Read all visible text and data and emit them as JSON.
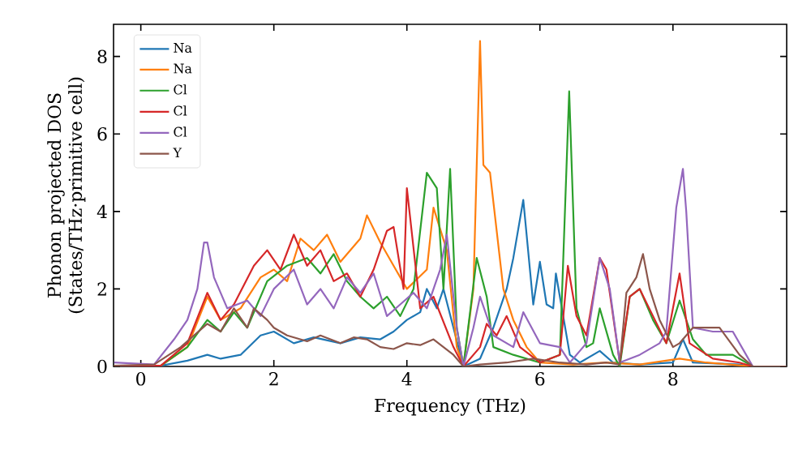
{
  "chart_data": {
    "type": "line",
    "xlabel": "Frequency (THz)",
    "ylabel": "Phonon projected DOS (States/THz·primitive cell)",
    "xlim": [
      -0.41,
      9.71
    ],
    "ylim": [
      0,
      8.83
    ],
    "xticks": [
      0,
      2,
      4,
      6,
      8
    ],
    "yticks": [
      0,
      2,
      4,
      6,
      8
    ],
    "legend": "top left",
    "grid": false,
    "line_style": "solid",
    "marker": "none",
    "series": [
      {
        "name": "Na",
        "color": "#1f77b4",
        "x": [
          -0.4,
          0.3,
          0.7,
          1.0,
          1.2,
          1.5,
          1.8,
          2.0,
          2.3,
          2.6,
          3.0,
          3.3,
          3.6,
          3.8,
          4.0,
          4.2,
          4.3,
          4.45,
          4.55,
          4.7,
          4.85,
          5.1,
          5.3,
          5.5,
          5.6,
          5.75,
          5.85,
          5.9,
          6.0,
          6.1,
          6.2,
          6.24,
          6.3,
          6.45,
          6.6,
          6.9,
          7.1,
          7.5,
          8.0,
          8.15,
          8.3,
          9.0,
          9.2,
          9.7
        ],
        "values": [
          0.02,
          0.02,
          0.15,
          0.3,
          0.2,
          0.3,
          0.8,
          0.9,
          0.6,
          0.75,
          0.6,
          0.75,
          0.7,
          0.9,
          1.2,
          1.4,
          2.0,
          1.5,
          2.0,
          1.0,
          0.0,
          0.2,
          1.0,
          2.0,
          2.8,
          4.3,
          2.5,
          1.6,
          2.7,
          1.6,
          1.5,
          2.4,
          1.8,
          0.3,
          0.1,
          0.4,
          0.1,
          0.05,
          0.1,
          0.7,
          0.1,
          0.05,
          0.0,
          0.0
        ]
      },
      {
        "name": "Na",
        "color": "#ff7f0e",
        "x": [
          -0.4,
          0.3,
          0.7,
          1.0,
          1.2,
          1.5,
          1.8,
          2.0,
          2.2,
          2.4,
          2.6,
          2.8,
          3.0,
          3.3,
          3.4,
          3.6,
          3.8,
          4.0,
          4.3,
          4.4,
          4.6,
          4.75,
          4.85,
          5.0,
          5.1,
          5.15,
          5.25,
          5.45,
          5.6,
          5.8,
          6.0,
          6.5,
          7.0,
          7.5,
          8.1,
          8.5,
          9.2,
          9.7
        ],
        "values": [
          0.02,
          0.02,
          0.5,
          1.8,
          1.2,
          1.5,
          2.3,
          2.5,
          2.2,
          3.3,
          3.0,
          3.4,
          2.7,
          3.3,
          3.9,
          3.2,
          2.6,
          2.0,
          2.5,
          4.1,
          3.0,
          0.5,
          0.0,
          2.0,
          8.4,
          5.2,
          5.0,
          2.0,
          1.2,
          0.5,
          0.1,
          0.05,
          0.1,
          0.05,
          0.2,
          0.1,
          0.0,
          0.0
        ]
      },
      {
        "name": "Cl",
        "color": "#2ca02c",
        "x": [
          -0.4,
          0.3,
          0.7,
          1.0,
          1.2,
          1.4,
          1.6,
          1.9,
          2.2,
          2.5,
          2.7,
          2.9,
          3.1,
          3.3,
          3.5,
          3.7,
          3.9,
          4.1,
          4.3,
          4.45,
          4.55,
          4.65,
          4.75,
          4.85,
          5.05,
          5.2,
          5.3,
          5.6,
          6.0,
          6.3,
          6.44,
          6.55,
          6.7,
          6.8,
          6.9,
          7.1,
          7.2,
          7.35,
          7.5,
          7.7,
          7.9,
          8.1,
          8.3,
          8.5,
          8.9,
          9.2,
          9.7
        ],
        "values": [
          0.02,
          0.02,
          0.5,
          1.2,
          0.9,
          1.4,
          1.0,
          2.2,
          2.6,
          2.8,
          2.4,
          2.9,
          2.2,
          1.8,
          1.5,
          1.8,
          1.3,
          2.0,
          5.0,
          4.6,
          2.0,
          5.1,
          1.0,
          0.0,
          2.8,
          1.8,
          0.5,
          0.3,
          0.1,
          0.3,
          7.1,
          1.5,
          0.5,
          0.6,
          1.5,
          0.3,
          0.0,
          1.8,
          2.0,
          1.2,
          0.6,
          1.7,
          0.7,
          0.3,
          0.3,
          0.0,
          0.0
        ]
      },
      {
        "name": "Cl",
        "color": "#d62728",
        "x": [
          -0.4,
          0.3,
          0.7,
          1.0,
          1.2,
          1.4,
          1.7,
          1.9,
          2.1,
          2.3,
          2.5,
          2.7,
          2.9,
          3.1,
          3.3,
          3.5,
          3.7,
          3.8,
          3.95,
          4.0,
          4.2,
          4.4,
          4.7,
          4.85,
          5.1,
          5.2,
          5.35,
          5.5,
          5.7,
          6.0,
          6.3,
          6.42,
          6.55,
          6.7,
          6.9,
          7.0,
          7.2,
          7.35,
          7.5,
          7.7,
          7.9,
          8.1,
          8.25,
          8.6,
          9.0,
          9.2,
          9.7
        ],
        "values": [
          0.02,
          0.02,
          0.6,
          1.9,
          1.2,
          1.6,
          2.6,
          3.0,
          2.5,
          3.4,
          2.6,
          3.0,
          2.2,
          2.4,
          1.8,
          2.5,
          3.5,
          3.6,
          2.0,
          4.6,
          1.5,
          1.8,
          0.5,
          0.0,
          0.5,
          1.1,
          0.8,
          1.3,
          0.5,
          0.1,
          0.3,
          2.6,
          1.3,
          0.8,
          2.8,
          2.5,
          0.1,
          1.8,
          2.0,
          1.3,
          0.6,
          2.4,
          0.6,
          0.2,
          0.1,
          0.0,
          0.0
        ]
      },
      {
        "name": "Cl",
        "color": "#9467bd",
        "x": [
          -0.4,
          0.2,
          0.5,
          0.7,
          0.85,
          0.95,
          1.0,
          1.1,
          1.3,
          1.6,
          1.8,
          2.0,
          2.3,
          2.5,
          2.7,
          2.9,
          3.1,
          3.3,
          3.5,
          3.7,
          3.9,
          4.1,
          4.3,
          4.5,
          4.6,
          4.75,
          4.85,
          5.0,
          5.1,
          5.3,
          5.6,
          5.75,
          6.0,
          6.3,
          6.45,
          6.6,
          6.7,
          6.9,
          7.05,
          7.2,
          7.5,
          7.8,
          7.9,
          8.05,
          8.15,
          8.2,
          8.3,
          8.6,
          8.9,
          9.1,
          9.2,
          9.7
        ],
        "values": [
          0.1,
          0.05,
          0.7,
          1.2,
          2.0,
          3.2,
          3.2,
          2.3,
          1.5,
          1.7,
          1.3,
          2.0,
          2.5,
          1.6,
          2.0,
          1.5,
          2.3,
          1.9,
          2.4,
          1.3,
          1.6,
          1.9,
          1.5,
          2.5,
          3.4,
          1.0,
          0.0,
          1.0,
          1.8,
          0.8,
          0.5,
          1.4,
          0.6,
          0.5,
          0.1,
          0.4,
          0.6,
          2.8,
          2.0,
          0.1,
          0.3,
          0.6,
          0.9,
          4.1,
          5.1,
          4.0,
          1.0,
          0.9,
          0.9,
          0.3,
          0.0,
          0.0
        ]
      },
      {
        "name": "Y",
        "color": "#8c564b",
        "x": [
          -0.4,
          0.2,
          0.6,
          1.0,
          1.2,
          1.4,
          1.6,
          1.7,
          1.9,
          2.0,
          2.2,
          2.5,
          2.7,
          3.0,
          3.2,
          3.4,
          3.6,
          3.8,
          4.0,
          4.2,
          4.4,
          4.7,
          4.85,
          5.1,
          5.5,
          5.9,
          6.3,
          6.7,
          7.0,
          7.2,
          7.3,
          7.45,
          7.55,
          7.65,
          7.8,
          8.0,
          8.1,
          8.3,
          8.7,
          9.0,
          9.2,
          9.7
        ],
        "values": [
          0.02,
          0.05,
          0.5,
          1.1,
          0.9,
          1.5,
          1.0,
          1.5,
          1.2,
          1.0,
          0.8,
          0.65,
          0.8,
          0.6,
          0.75,
          0.7,
          0.5,
          0.45,
          0.6,
          0.55,
          0.7,
          0.3,
          0.0,
          0.05,
          0.1,
          0.2,
          0.1,
          0.05,
          0.1,
          0.05,
          1.9,
          2.3,
          2.9,
          2.0,
          1.2,
          0.5,
          0.6,
          1.0,
          1.0,
          0.3,
          0.0,
          0.0
        ]
      }
    ]
  }
}
